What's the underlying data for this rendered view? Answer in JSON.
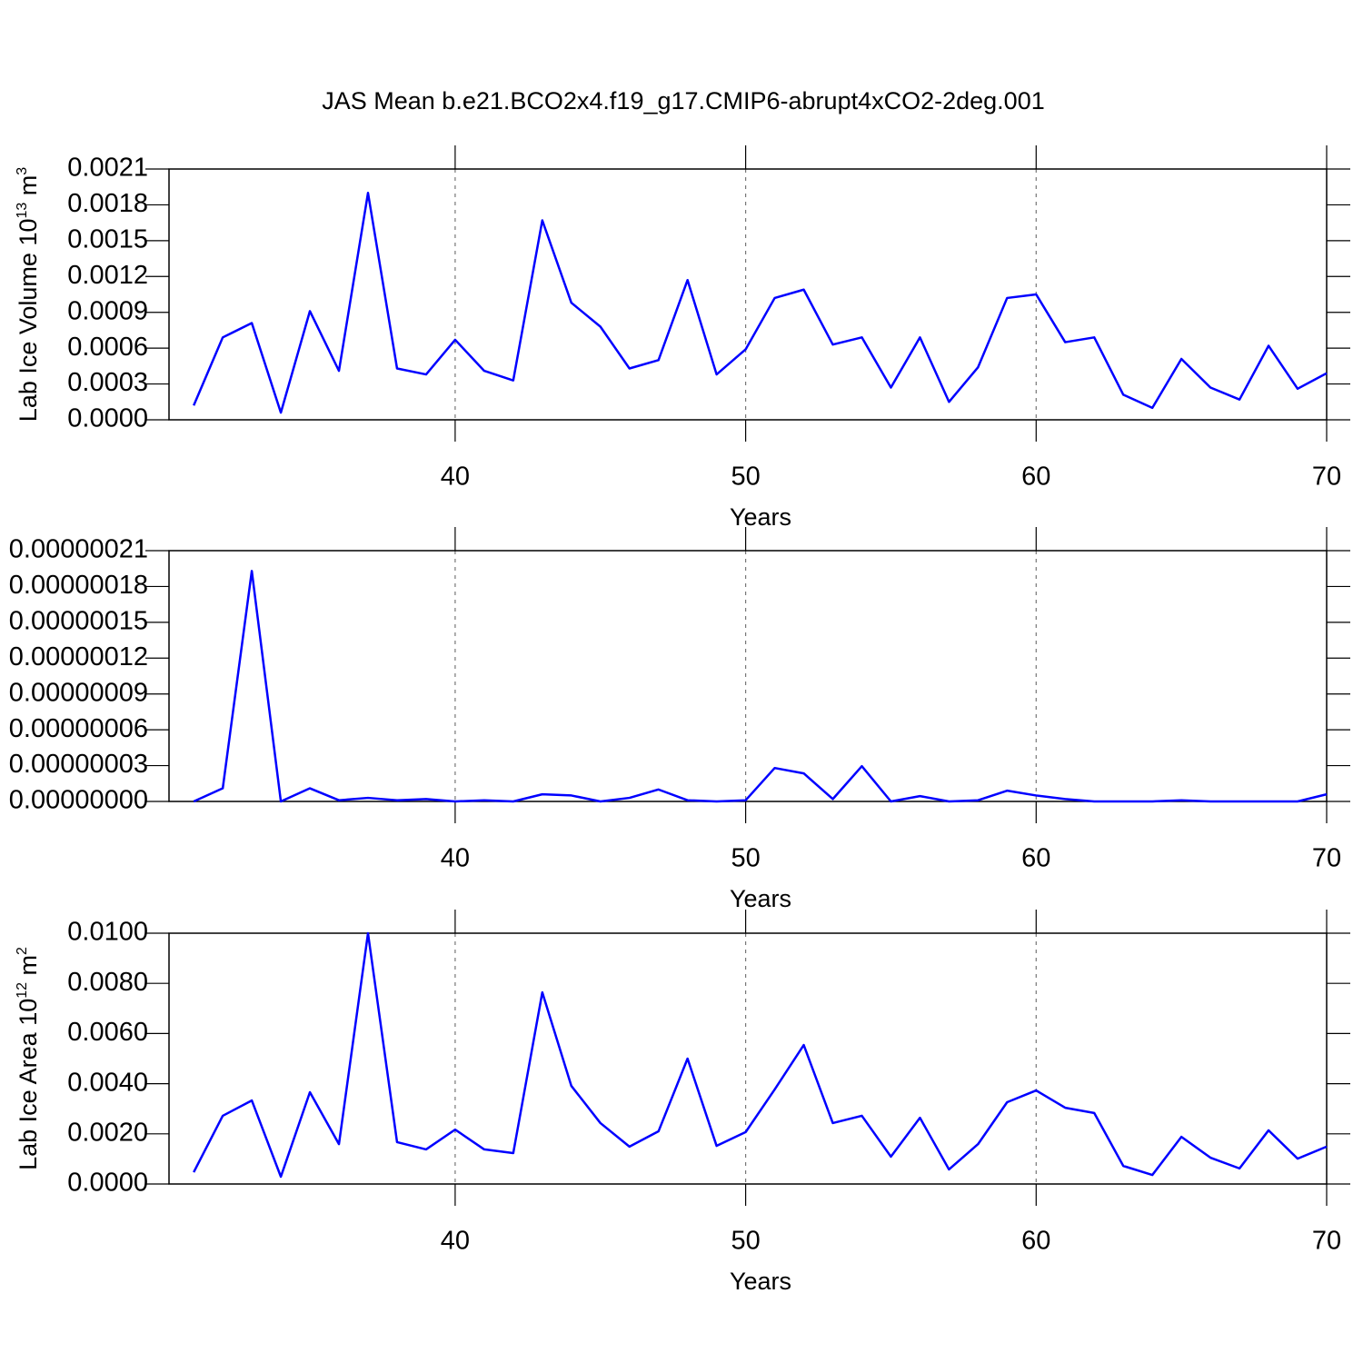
{
  "chart_data": [
    {
      "type": "line",
      "title": "JAS Mean b.e21.BCO2x4.f19_g17.CMIP6-abrupt4xCO2-2deg.001",
      "xlabel": "Years",
      "ylabel": [
        "Lab Ice Volume 10",
        "13",
        " m",
        "3"
      ],
      "x": [
        31,
        32,
        33,
        34,
        35,
        36,
        37,
        38,
        39,
        40,
        41,
        42,
        43,
        44,
        45,
        46,
        47,
        48,
        49,
        50,
        51,
        52,
        53,
        54,
        55,
        56,
        57,
        58,
        59,
        60,
        61,
        62,
        63,
        64,
        65,
        66,
        67,
        68,
        69,
        70
      ],
      "values": [
        0.00012,
        0.00069,
        0.00081,
        6e-05,
        0.00091,
        0.00041,
        0.0019,
        0.00043,
        0.00038,
        0.00067,
        0.00041,
        0.00033,
        0.00167,
        0.00098,
        0.00078,
        0.00043,
        0.0005,
        0.00117,
        0.00038,
        0.00059,
        0.00102,
        0.00109,
        0.00063,
        0.00069,
        0.00027,
        0.00069,
        0.00015,
        0.00044,
        0.00102,
        0.00105,
        0.00065,
        0.00069,
        0.00021,
        0.0001,
        0.00051,
        0.00027,
        0.00017,
        0.00062,
        0.00026,
        0.00039
      ],
      "color": "#0000ff",
      "xlim": [
        30.15,
        70
      ],
      "xticks": [
        40,
        50,
        60,
        70
      ],
      "ylim": [
        0,
        0.0021
      ],
      "yticks": [
        {
          "value": 0,
          "label": "0.0000"
        },
        0.0003,
        0.0006,
        0.0009,
        0.0012,
        0.0015,
        0.0018,
        0.0021
      ],
      "grid": "x-dashed"
    },
    {
      "type": "line",
      "xlabel": "Years",
      "x": [
        31,
        32,
        33,
        34,
        35,
        36,
        37,
        38,
        39,
        40,
        41,
        42,
        43,
        44,
        45,
        46,
        47,
        48,
        49,
        50,
        51,
        52,
        53,
        54,
        55,
        56,
        57,
        58,
        59,
        60,
        61,
        62,
        63,
        64,
        65,
        66,
        67,
        68,
        69,
        70
      ],
      "values": [
        0,
        1.1e-08,
        1.93e-07,
        0,
        1.1e-08,
        1e-09,
        3e-09,
        1e-09,
        2e-09,
        0,
        1e-09,
        0,
        6e-09,
        5e-09,
        0,
        3e-09,
        1e-08,
        1e-09,
        0,
        1e-09,
        2.8e-08,
        2.35e-08,
        2e-09,
        2.95e-08,
        0,
        4.5e-09,
        0,
        1e-09,
        9e-09,
        5e-09,
        2e-09,
        0,
        0,
        0,
        1e-09,
        0,
        0,
        0,
        0,
        6e-09
      ],
      "color": "#0000ff",
      "xlim": [
        30.15,
        70
      ],
      "xticks": [
        40,
        50,
        60,
        70
      ],
      "ylim": [
        0,
        2.1e-07
      ],
      "yticks": [
        {
          "value": 0,
          "label": "0.00000000"
        },
        {
          "value": 3e-08,
          "label": "0.00000003"
        },
        {
          "value": 6e-08,
          "label": "0.00000006"
        },
        {
          "value": 9e-08,
          "label": "0.00000009"
        },
        {
          "value": 1.2e-07,
          "label": "0.00000012"
        },
        {
          "value": 1.5e-07,
          "label": "0.00000015"
        },
        {
          "value": 1.8e-07,
          "label": "0.00000018"
        },
        {
          "value": 2.1e-07,
          "label": "0.00000021"
        }
      ],
      "grid": "x-dashed"
    },
    {
      "type": "line",
      "xlabel": "Years",
      "ylabel": [
        "Lab Ice Area 10",
        "12",
        " m",
        "2"
      ],
      "x": [
        31,
        32,
        33,
        34,
        35,
        36,
        37,
        38,
        39,
        40,
        41,
        42,
        43,
        44,
        45,
        46,
        47,
        48,
        49,
        50,
        51,
        52,
        53,
        54,
        55,
        56,
        57,
        58,
        59,
        60,
        61,
        62,
        63,
        64,
        65,
        66,
        67,
        68,
        69,
        70
      ],
      "values": [
        0.00047,
        0.00272,
        0.00333,
        0.00029,
        0.00366,
        0.00159,
        0.01,
        0.00167,
        0.00138,
        0.00217,
        0.00138,
        0.00123,
        0.00764,
        0.00391,
        0.00243,
        0.00149,
        0.0021,
        0.005,
        0.00152,
        0.00207,
        0.00377,
        0.00554,
        0.00243,
        0.00272,
        0.00109,
        0.00264,
        0.00058,
        0.00159,
        0.00326,
        0.00373,
        0.00304,
        0.00283,
        0.00072,
        0.00036,
        0.00188,
        0.00105,
        0.00062,
        0.00214,
        0.00101,
        0.00149
      ],
      "color": "#0000ff",
      "xlim": [
        30.15,
        70
      ],
      "xticks": [
        40,
        50,
        60,
        70
      ],
      "ylim": [
        0,
        0.01
      ],
      "yticks": [
        {
          "value": 0,
          "label": "0.0000"
        },
        {
          "value": 0.002,
          "label": "0.0020"
        },
        {
          "value": 0.004,
          "label": "0.0040"
        },
        {
          "value": 0.006,
          "label": "0.0060"
        },
        {
          "value": 0.008,
          "label": "0.0080"
        },
        {
          "value": 0.01,
          "label": "0.0100"
        }
      ],
      "grid": "x-dashed"
    }
  ]
}
